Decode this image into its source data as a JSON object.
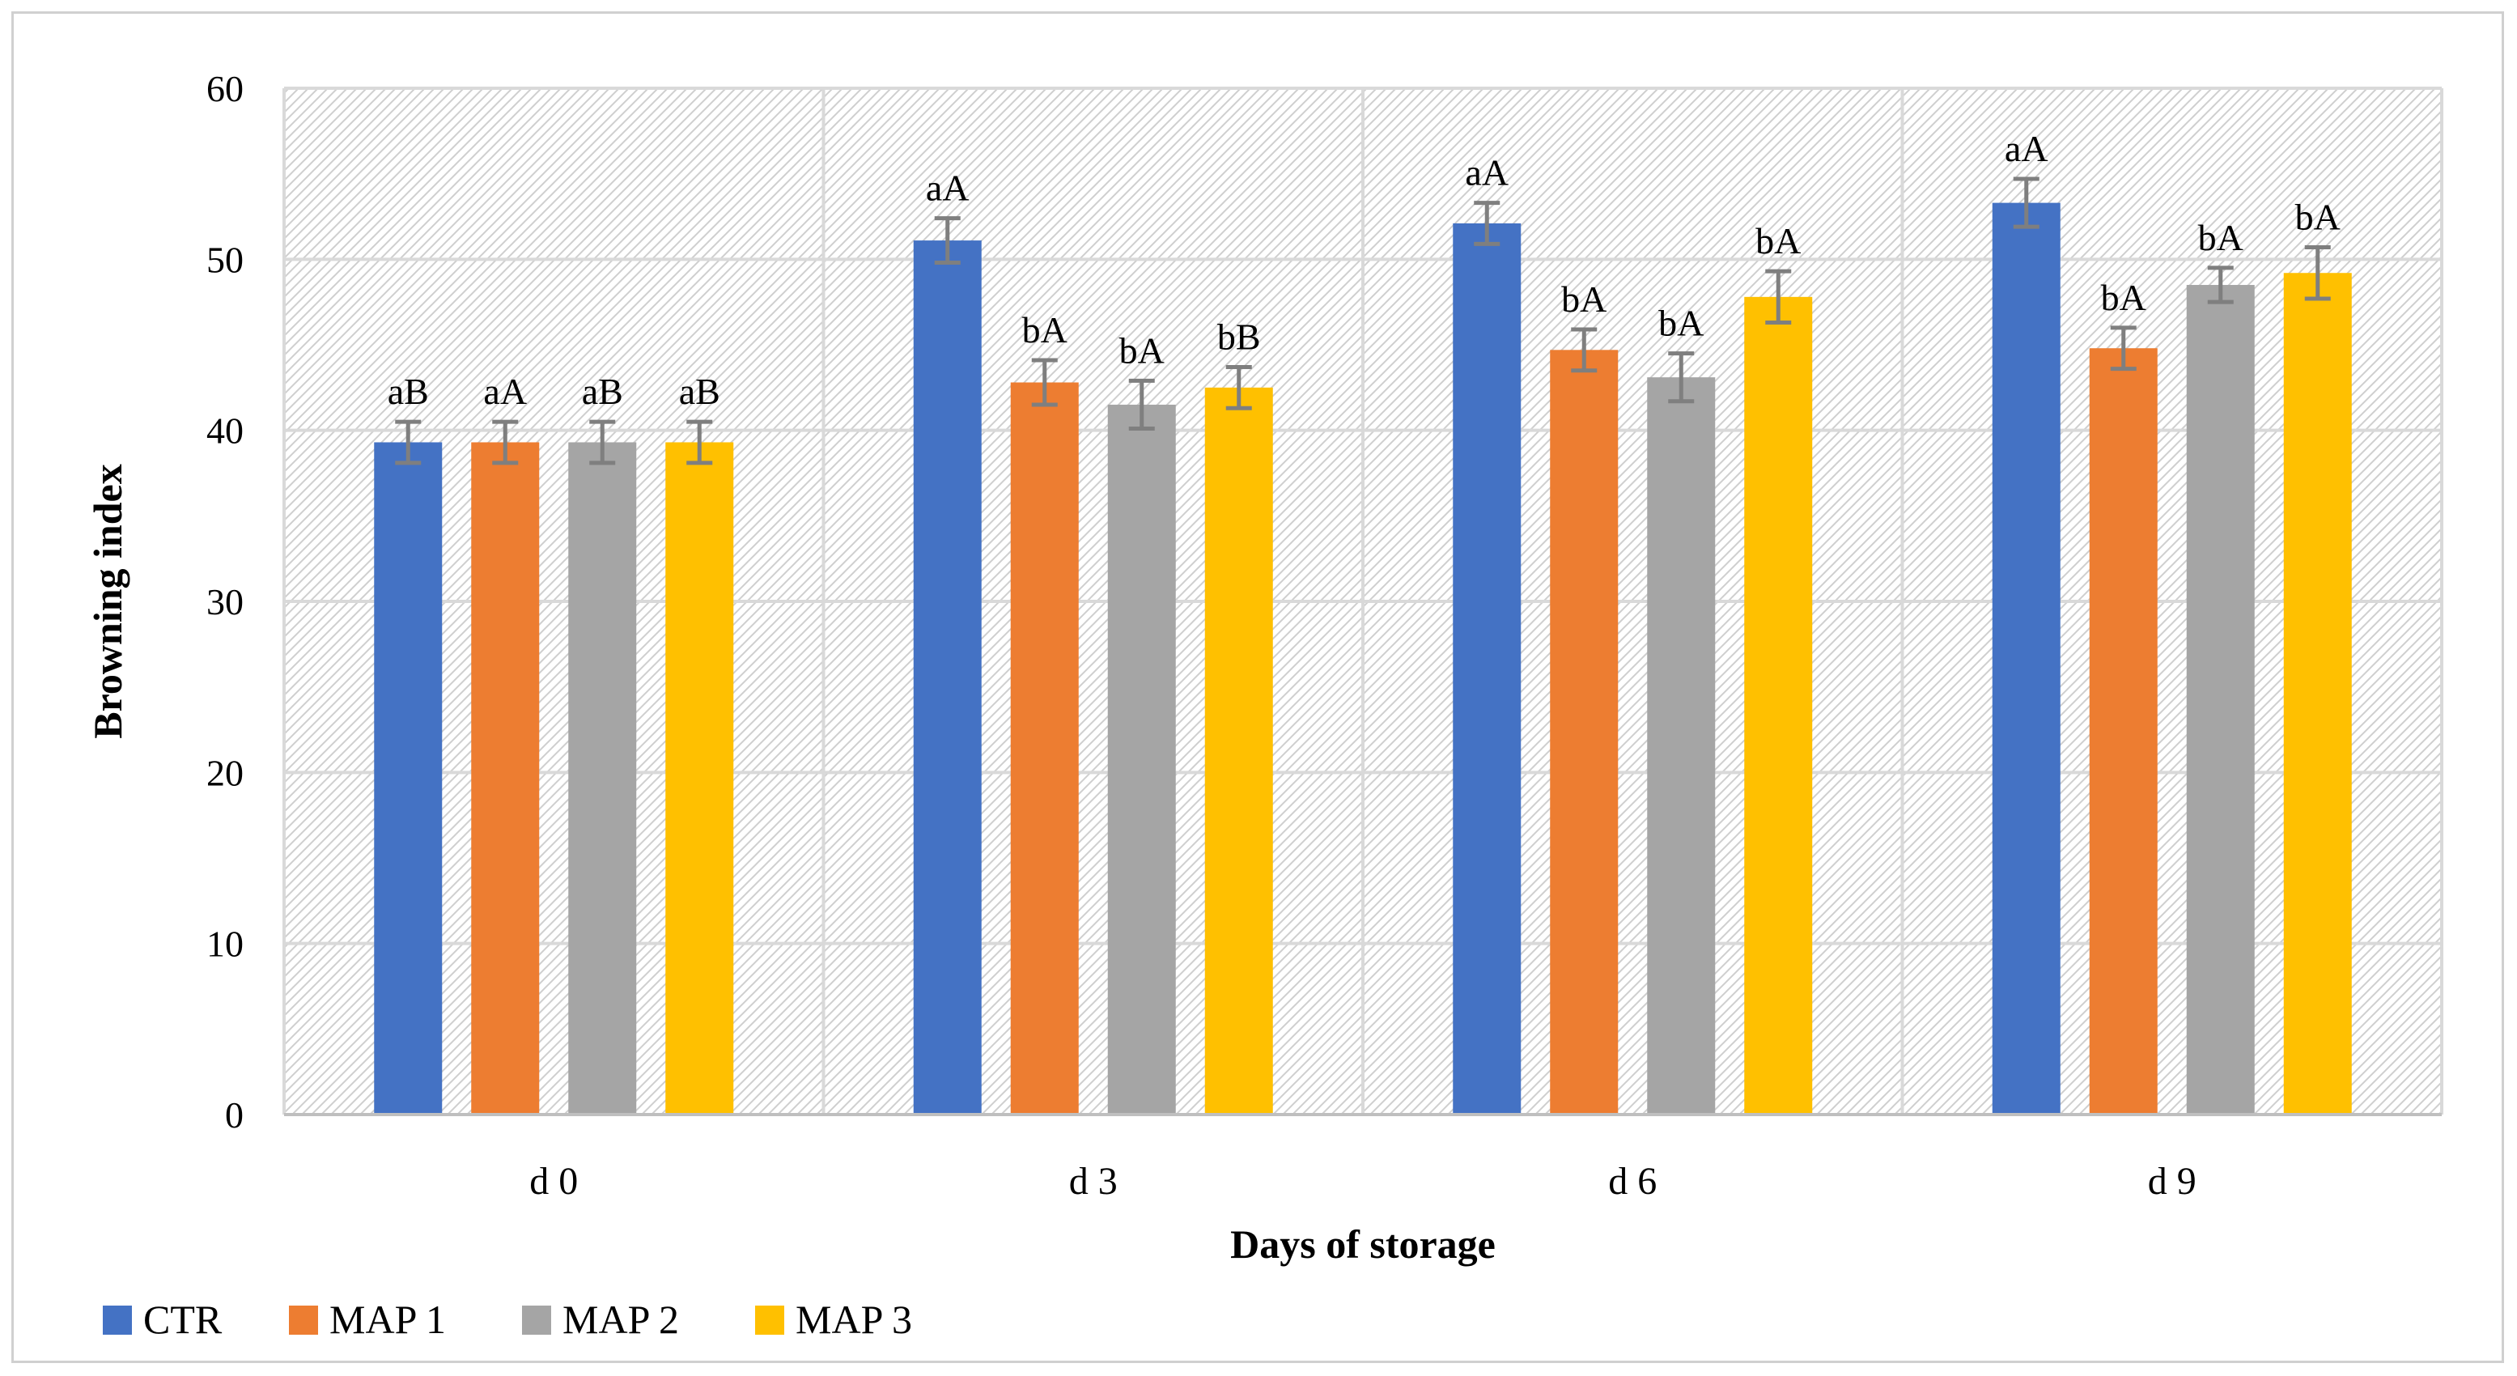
{
  "chart_data": {
    "type": "bar",
    "title": "",
    "xlabel": "Days of storage",
    "ylabel": "Browning index",
    "ylim": [
      0,
      60
    ],
    "yticks": [
      0,
      10,
      20,
      30,
      40,
      50,
      60
    ],
    "tick_labels": [
      "0",
      "10",
      "20",
      "30",
      "40",
      "50",
      "60"
    ],
    "categories": [
      "d 0",
      "d 3",
      "d 6",
      "d 9"
    ],
    "grid": true,
    "legend_position": "bottom-left",
    "series": [
      {
        "name": "CTR",
        "color": "#4472C4",
        "values": [
          39.3,
          51.1,
          52.1,
          53.3
        ],
        "errors": [
          1.2,
          1.3,
          1.2,
          1.4
        ],
        "labels": [
          "aB",
          "aA",
          "aA",
          "aA"
        ]
      },
      {
        "name": "MAP 1",
        "color": "#ED7D31",
        "values": [
          39.3,
          42.8,
          44.7,
          44.8
        ],
        "errors": [
          1.2,
          1.3,
          1.2,
          1.2
        ],
        "labels": [
          "aA",
          "bA",
          "bA",
          "bA"
        ]
      },
      {
        "name": "MAP 2",
        "color": "#A5A5A5",
        "values": [
          39.3,
          41.5,
          43.1,
          48.5
        ],
        "errors": [
          1.2,
          1.4,
          1.4,
          1.0
        ],
        "labels": [
          "aB",
          "bA",
          "bA",
          "bA"
        ]
      },
      {
        "name": "MAP 3",
        "color": "#FFC000",
        "values": [
          39.3,
          42.5,
          47.8,
          49.2
        ],
        "errors": [
          1.2,
          1.2,
          1.5,
          1.5
        ],
        "labels": [
          "aB",
          "bB",
          "bA",
          "bA"
        ]
      }
    ]
  },
  "colors": {
    "grid": "#d9d9d9",
    "axis": "#bfbfbf",
    "error_bar": "#7f7f7f",
    "hatch": "#c9c9c9"
  }
}
